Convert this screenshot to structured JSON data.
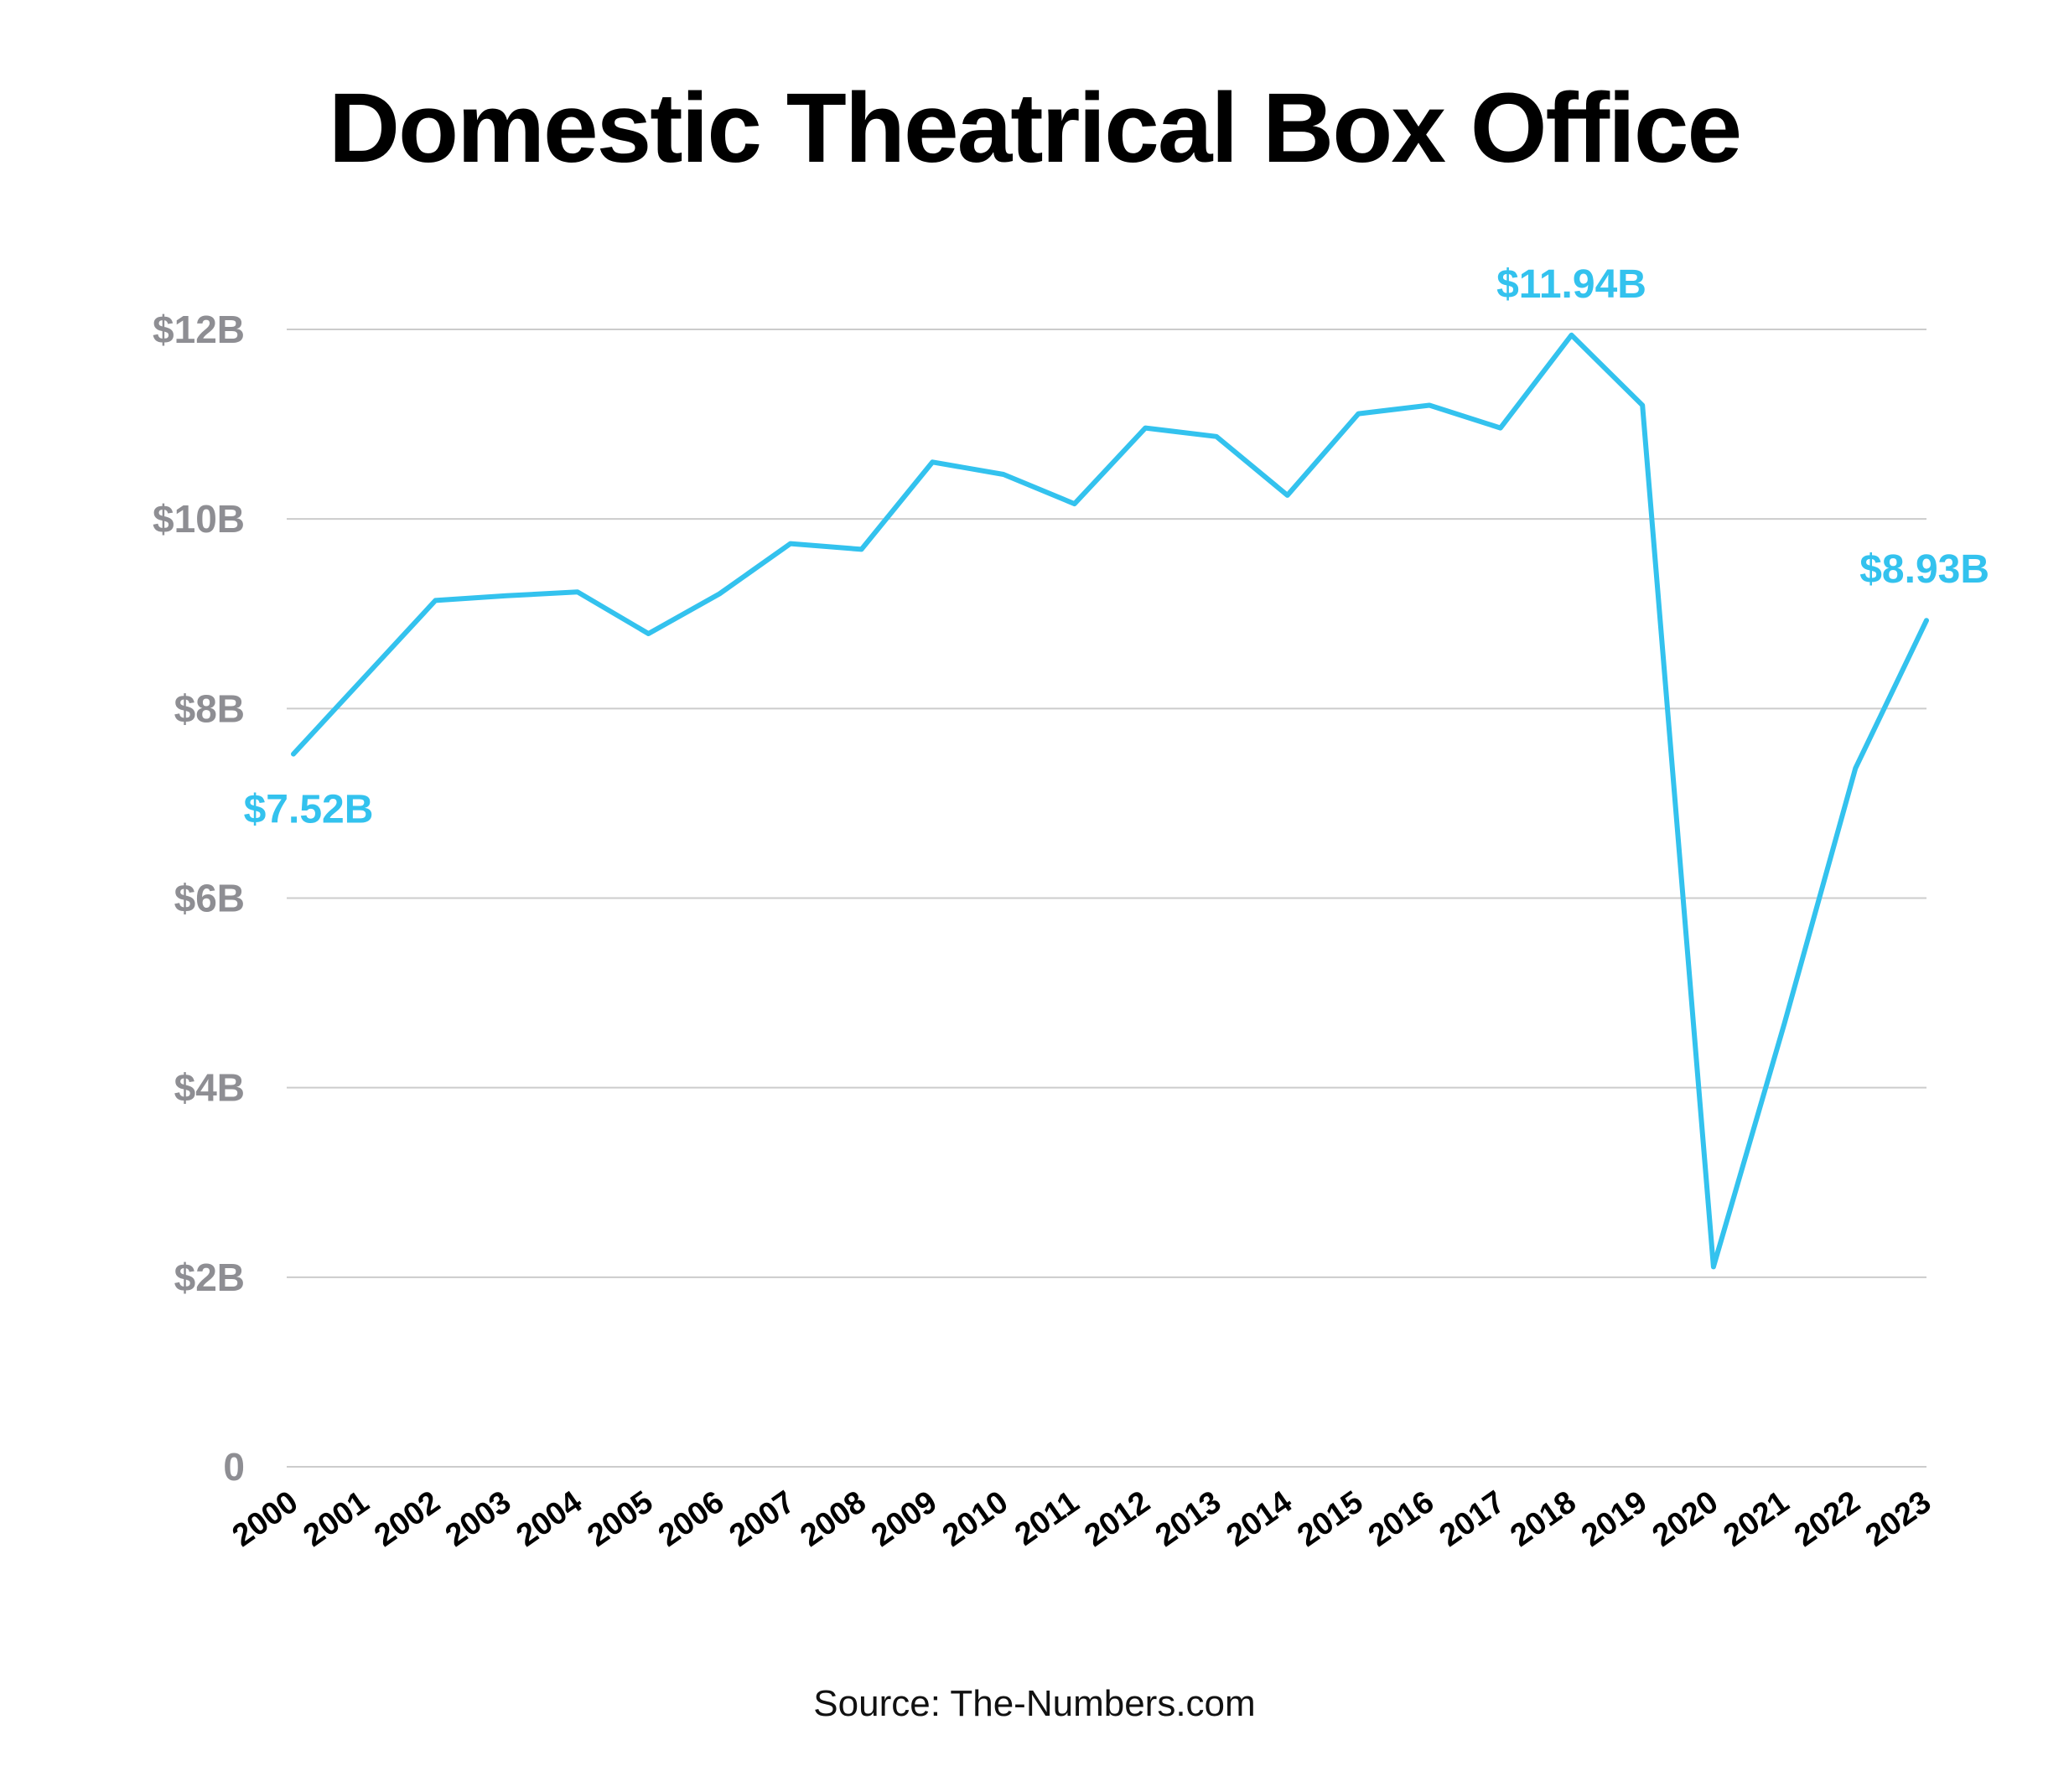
{
  "chart_data": {
    "type": "line",
    "title": "Domestic Theatrical Box Office",
    "source": "Source: The-Numbers.com",
    "x": [
      "2000",
      "2001",
      "2002",
      "2003",
      "2004",
      "2005",
      "2006",
      "2007",
      "2008",
      "2009",
      "2010",
      "2011",
      "2012",
      "2013",
      "2014",
      "2015",
      "2016",
      "2017",
      "2018",
      "2019",
      "2020",
      "2021",
      "2022",
      "2023"
    ],
    "series": [
      {
        "values": [
          7.52,
          8.33,
          9.14,
          9.19,
          9.23,
          8.79,
          9.21,
          9.74,
          9.68,
          10.6,
          10.47,
          10.16,
          10.96,
          10.87,
          10.25,
          11.11,
          11.2,
          10.96,
          11.94,
          11.2,
          2.11,
          4.68,
          7.37,
          8.93
        ]
      }
    ],
    "yticks": [
      {
        "value": 0,
        "label": "0"
      },
      {
        "value": 2,
        "label": "$2B"
      },
      {
        "value": 4,
        "label": "$4B"
      },
      {
        "value": 6,
        "label": "$6B"
      },
      {
        "value": 8,
        "label": "$8B"
      },
      {
        "value": 10,
        "label": "$10B"
      },
      {
        "value": 12,
        "label": "$12B"
      }
    ],
    "ylim": [
      0,
      12
    ],
    "grid": true,
    "annotations": [
      {
        "x": "2000",
        "value": 7.52,
        "label": "$7.52B",
        "position": "below"
      },
      {
        "x": "2018",
        "value": 11.94,
        "label": "$11.94B",
        "position": "above"
      },
      {
        "x": "2023",
        "value": 8.93,
        "label": "$8.93B",
        "position": "above"
      }
    ],
    "colors": {
      "line": "#33c2ee",
      "grid": "#cccccc",
      "ytick": "#8e8e93",
      "xtick": "#000000"
    }
  }
}
